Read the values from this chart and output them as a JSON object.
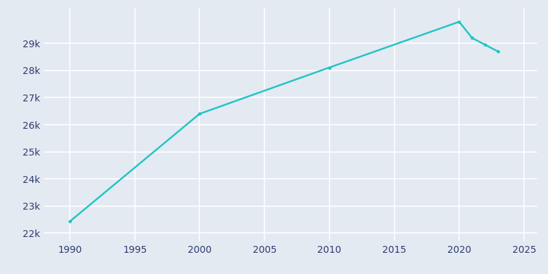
{
  "years": [
    1990,
    2000,
    2010,
    2020,
    2021,
    2022,
    2023
  ],
  "population": [
    22425,
    26400,
    28111,
    29800,
    29200,
    28950,
    28700
  ],
  "line_color": "#22C4C4",
  "marker_color": "#22C4C4",
  "bg_color": "#E3EAF2",
  "plot_bg_color": "#E3EAF2",
  "grid_color": "#FFFFFF",
  "tick_label_color": "#2E3A6E",
  "xlim": [
    1988,
    2026
  ],
  "ylim": [
    21700,
    30300
  ],
  "xticks": [
    1990,
    1995,
    2000,
    2005,
    2010,
    2015,
    2020,
    2025
  ],
  "ytick_values": [
    22000,
    23000,
    24000,
    25000,
    26000,
    27000,
    28000,
    29000
  ],
  "ytick_labels": [
    "22k",
    "23k",
    "24k",
    "25k",
    "26k",
    "27k",
    "28k",
    "29k"
  ]
}
